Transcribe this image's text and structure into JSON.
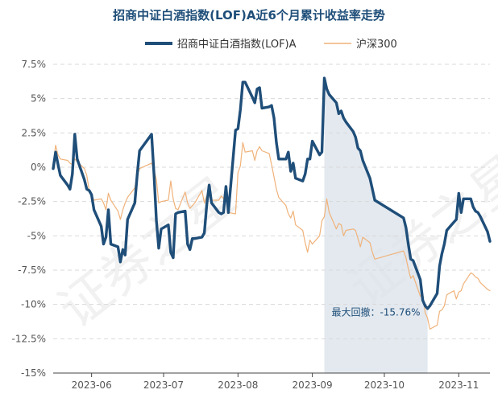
{
  "chart_data": {
    "type": "line",
    "title": "招商中证白酒指数(LOF)A近6个月累计收益率走势",
    "legend_position": "top",
    "grid": "horizontal-dashed",
    "ylim": [
      -15,
      7.5
    ],
    "yticks": [
      7.5,
      5,
      2.5,
      0,
      -2.5,
      -5,
      -7.5,
      -10,
      -12.5,
      -15
    ],
    "ytick_labels": [
      "7.5%",
      "5%",
      "2.5%",
      "0%",
      "-2.5%",
      "-5%",
      "-7.5%",
      "-10%",
      "-12.5%",
      "-15%"
    ],
    "xticks": [
      "2023-06",
      "2023-07",
      "2023-08",
      "2023-09",
      "2023-10",
      "2023-11"
    ],
    "x_start": "2023-05-16",
    "x_end": "2023-11-14",
    "series": [
      {
        "name": "招商中证白酒指数(LOF)A",
        "color": "#1f4e79",
        "points": [
          [
            "2023-05-16",
            -0.1
          ],
          [
            "2023-05-17",
            1.1
          ],
          [
            "2023-05-18",
            0.2
          ],
          [
            "2023-05-19",
            -0.6
          ],
          [
            "2023-05-22",
            -1.3
          ],
          [
            "2023-05-23",
            -1.6
          ],
          [
            "2023-05-24",
            -0.5
          ],
          [
            "2023-05-25",
            2.4
          ],
          [
            "2023-05-26",
            0.6
          ],
          [
            "2023-05-29",
            -0.9
          ],
          [
            "2023-05-30",
            -1.6
          ],
          [
            "2023-05-31",
            -1.7
          ],
          [
            "2023-06-01",
            -2.0
          ],
          [
            "2023-06-02",
            -3.1
          ],
          [
            "2023-06-05",
            -4.3
          ],
          [
            "2023-06-06",
            -5.6
          ],
          [
            "2023-06-07",
            -5.1
          ],
          [
            "2023-06-08",
            -3.1
          ],
          [
            "2023-06-09",
            -5.6
          ],
          [
            "2023-06-12",
            -5.8
          ],
          [
            "2023-06-13",
            -6.9
          ],
          [
            "2023-06-14",
            -6.0
          ],
          [
            "2023-06-15",
            -6.4
          ],
          [
            "2023-06-16",
            -3.8
          ],
          [
            "2023-06-19",
            -2.6
          ],
          [
            "2023-06-20",
            -0.6
          ],
          [
            "2023-06-21",
            1.2
          ],
          [
            "2023-06-26",
            2.4
          ],
          [
            "2023-06-27",
            -0.5
          ],
          [
            "2023-06-28",
            -3.9
          ],
          [
            "2023-06-29",
            -5.9
          ],
          [
            "2023-06-30",
            -4.5
          ],
          [
            "2023-07-03",
            -4.2
          ],
          [
            "2023-07-04",
            -6.2
          ],
          [
            "2023-07-05",
            -6.6
          ],
          [
            "2023-07-06",
            -3.4
          ],
          [
            "2023-07-07",
            -3.3
          ],
          [
            "2023-07-10",
            -3.2
          ],
          [
            "2023-07-11",
            -5.6
          ],
          [
            "2023-07-12",
            -6.0
          ],
          [
            "2023-07-13",
            -5.2
          ],
          [
            "2023-07-14",
            -5.2
          ],
          [
            "2023-07-17",
            -5.1
          ],
          [
            "2023-07-18",
            -4.8
          ],
          [
            "2023-07-19",
            -2.7
          ],
          [
            "2023-07-20",
            -1.3
          ],
          [
            "2023-07-21",
            -2.6
          ],
          [
            "2023-07-24",
            -3.3
          ],
          [
            "2023-07-25",
            -3.4
          ],
          [
            "2023-07-26",
            -3.3
          ],
          [
            "2023-07-27",
            -1.4
          ],
          [
            "2023-07-28",
            -3.3
          ],
          [
            "2023-07-31",
            2.7
          ],
          [
            "2023-08-01",
            2.8
          ],
          [
            "2023-08-02",
            4.2
          ],
          [
            "2023-08-03",
            6.2
          ],
          [
            "2023-08-04",
            6.2
          ],
          [
            "2023-08-07",
            5.1
          ],
          [
            "2023-08-08",
            4.7
          ],
          [
            "2023-08-09",
            5.7
          ],
          [
            "2023-08-10",
            5.8
          ],
          [
            "2023-08-11",
            4.3
          ],
          [
            "2023-08-14",
            4.4
          ],
          [
            "2023-08-15",
            4.5
          ],
          [
            "2023-08-16",
            3.6
          ],
          [
            "2023-08-17",
            1.8
          ],
          [
            "2023-08-18",
            0.6
          ],
          [
            "2023-08-21",
            0.6
          ],
          [
            "2023-08-22",
            1.1
          ],
          [
            "2023-08-23",
            -0.3
          ],
          [
            "2023-08-24",
            0.3
          ],
          [
            "2023-08-25",
            -0.8
          ],
          [
            "2023-08-28",
            -1.0
          ],
          [
            "2023-08-29",
            -0.5
          ],
          [
            "2023-08-30",
            0.6
          ],
          [
            "2023-08-31",
            0.6
          ],
          [
            "2023-09-01",
            1.9
          ],
          [
            "2023-09-04",
            0.9
          ],
          [
            "2023-09-05",
            1.1
          ],
          [
            "2023-09-06",
            6.5
          ],
          [
            "2023-09-07",
            5.7
          ],
          [
            "2023-09-08",
            5.3
          ],
          [
            "2023-09-11",
            4.7
          ],
          [
            "2023-09-12",
            3.9
          ],
          [
            "2023-09-13",
            4.1
          ],
          [
            "2023-09-14",
            3.6
          ],
          [
            "2023-09-15",
            3.3
          ],
          [
            "2023-09-18",
            2.6
          ],
          [
            "2023-09-19",
            2.2
          ],
          [
            "2023-09-20",
            1.4
          ],
          [
            "2023-09-21",
            1.2
          ],
          [
            "2023-09-22",
            0.5
          ],
          [
            "2023-09-25",
            -0.8
          ],
          [
            "2023-09-26",
            -1.6
          ],
          [
            "2023-09-27",
            -2.4
          ],
          [
            "2023-10-09",
            -3.7
          ],
          [
            "2023-10-10",
            -4.4
          ],
          [
            "2023-10-11",
            -5.6
          ],
          [
            "2023-10-12",
            -6.7
          ],
          [
            "2023-10-13",
            -6.8
          ],
          [
            "2023-10-16",
            -8.2
          ],
          [
            "2023-10-17",
            -9.7
          ],
          [
            "2023-10-18",
            -10.1
          ],
          [
            "2023-10-19",
            -10.3
          ],
          [
            "2023-10-20",
            -10.1
          ],
          [
            "2023-10-23",
            -9.2
          ],
          [
            "2023-10-24",
            -7.2
          ],
          [
            "2023-10-25",
            -6.3
          ],
          [
            "2023-10-26",
            -5.6
          ],
          [
            "2023-10-27",
            -4.6
          ],
          [
            "2023-10-30",
            -4.0
          ],
          [
            "2023-10-31",
            -3.8
          ],
          [
            "2023-11-01",
            -1.9
          ],
          [
            "2023-11-02",
            -3.3
          ],
          [
            "2023-11-03",
            -2.3
          ],
          [
            "2023-11-06",
            -2.3
          ],
          [
            "2023-11-07",
            -2.9
          ],
          [
            "2023-11-08",
            -3.2
          ],
          [
            "2023-11-09",
            -3.3
          ],
          [
            "2023-11-10",
            -3.6
          ],
          [
            "2023-11-13",
            -4.7
          ],
          [
            "2023-11-14",
            -5.4
          ]
        ]
      },
      {
        "name": "沪深300",
        "color": "#f0b27a",
        "points": [
          [
            "2023-05-16",
            0.2
          ],
          [
            "2023-05-17",
            1.6
          ],
          [
            "2023-05-18",
            0.9
          ],
          [
            "2023-05-19",
            0.6
          ],
          [
            "2023-05-22",
            0.5
          ],
          [
            "2023-05-23",
            0.3
          ],
          [
            "2023-05-24",
            0.2
          ],
          [
            "2023-05-25",
            0.6
          ],
          [
            "2023-05-26",
            0.4
          ],
          [
            "2023-05-29",
            -0.1
          ],
          [
            "2023-05-30",
            -0.6
          ],
          [
            "2023-05-31",
            -1.7
          ],
          [
            "2023-06-01",
            -2.0
          ],
          [
            "2023-06-02",
            -2.4
          ],
          [
            "2023-06-05",
            -2.3
          ],
          [
            "2023-06-06",
            -2.6
          ],
          [
            "2023-06-07",
            -3.1
          ],
          [
            "2023-06-08",
            -1.9
          ],
          [
            "2023-06-09",
            -2.4
          ],
          [
            "2023-06-12",
            -3.2
          ],
          [
            "2023-06-13",
            -3.8
          ],
          [
            "2023-06-14",
            -3.1
          ],
          [
            "2023-06-15",
            -2.6
          ],
          [
            "2023-06-16",
            -2.2
          ],
          [
            "2023-06-19",
            -1.5
          ],
          [
            "2023-06-20",
            -0.6
          ],
          [
            "2023-06-21",
            -0.1
          ],
          [
            "2023-06-26",
            0.3
          ],
          [
            "2023-06-27",
            -0.2
          ],
          [
            "2023-06-28",
            -0.9
          ],
          [
            "2023-06-29",
            -2.6
          ],
          [
            "2023-06-30",
            -2.5
          ],
          [
            "2023-07-03",
            -2.4
          ],
          [
            "2023-07-04",
            -1.0
          ],
          [
            "2023-07-05",
            -2.3
          ],
          [
            "2023-07-06",
            -3.0
          ],
          [
            "2023-07-07",
            -3.1
          ],
          [
            "2023-07-10",
            -1.8
          ],
          [
            "2023-07-11",
            -2.6
          ],
          [
            "2023-07-12",
            -3.0
          ],
          [
            "2023-07-13",
            -2.8
          ],
          [
            "2023-07-14",
            -2.6
          ],
          [
            "2023-07-17",
            -1.7
          ],
          [
            "2023-07-18",
            -2.6
          ],
          [
            "2023-07-19",
            -2.1
          ],
          [
            "2023-07-20",
            -1.6
          ],
          [
            "2023-07-21",
            -2.4
          ],
          [
            "2023-07-24",
            -2.4
          ],
          [
            "2023-07-25",
            -2.1
          ],
          [
            "2023-07-26",
            -2.3
          ],
          [
            "2023-07-27",
            -1.5
          ],
          [
            "2023-07-28",
            -3.3
          ],
          [
            "2023-07-31",
            -3.4
          ],
          [
            "2023-08-01",
            -0.4
          ],
          [
            "2023-08-02",
            0.1
          ],
          [
            "2023-08-03",
            1.8
          ],
          [
            "2023-08-04",
            1.1
          ],
          [
            "2023-08-07",
            1.2
          ],
          [
            "2023-08-08",
            0.5
          ],
          [
            "2023-08-09",
            1.2
          ],
          [
            "2023-08-10",
            1.5
          ],
          [
            "2023-08-11",
            1.2
          ],
          [
            "2023-08-14",
            1.0
          ],
          [
            "2023-08-15",
            0.2
          ],
          [
            "2023-08-16",
            -0.7
          ],
          [
            "2023-08-17",
            -1.6
          ],
          [
            "2023-08-18",
            -2.2
          ],
          [
            "2023-08-21",
            -2.8
          ],
          [
            "2023-08-22",
            -3.4
          ],
          [
            "2023-08-23",
            -3.7
          ],
          [
            "2023-08-24",
            -3.2
          ],
          [
            "2023-08-25",
            -4.2
          ],
          [
            "2023-08-28",
            -4.6
          ],
          [
            "2023-08-29",
            -5.5
          ],
          [
            "2023-08-30",
            -6.2
          ],
          [
            "2023-08-31",
            -5.3
          ],
          [
            "2023-09-01",
            -5.6
          ],
          [
            "2023-09-04",
            -5.0
          ],
          [
            "2023-09-05",
            -3.9
          ],
          [
            "2023-09-06",
            -3.6
          ],
          [
            "2023-09-07",
            -2.3
          ],
          [
            "2023-09-08",
            -3.3
          ],
          [
            "2023-09-11",
            -4.5
          ],
          [
            "2023-09-12",
            -4.1
          ],
          [
            "2023-09-13",
            -4.2
          ],
          [
            "2023-09-14",
            -5.0
          ],
          [
            "2023-09-15",
            -4.6
          ],
          [
            "2023-09-18",
            -4.5
          ],
          [
            "2023-09-19",
            -4.6
          ],
          [
            "2023-09-20",
            -5.2
          ],
          [
            "2023-09-21",
            -5.8
          ],
          [
            "2023-09-22",
            -5.1
          ],
          [
            "2023-09-25",
            -5.5
          ],
          [
            "2023-09-26",
            -6.2
          ],
          [
            "2023-09-27",
            -6.7
          ],
          [
            "2023-10-09",
            -6.1
          ],
          [
            "2023-10-10",
            -6.6
          ],
          [
            "2023-10-11",
            -7.4
          ],
          [
            "2023-10-12",
            -8.1
          ],
          [
            "2023-10-13",
            -7.9
          ],
          [
            "2023-10-16",
            -9.4
          ],
          [
            "2023-10-17",
            -9.2
          ],
          [
            "2023-10-18",
            -10.6
          ],
          [
            "2023-10-19",
            -11.0
          ],
          [
            "2023-10-20",
            -11.8
          ],
          [
            "2023-10-23",
            -11.5
          ],
          [
            "2023-10-24",
            -10.5
          ],
          [
            "2023-10-25",
            -10.4
          ],
          [
            "2023-10-26",
            -10.1
          ],
          [
            "2023-10-27",
            -9.3
          ],
          [
            "2023-10-30",
            -9.0
          ],
          [
            "2023-10-31",
            -9.6
          ],
          [
            "2023-11-01",
            -9.1
          ],
          [
            "2023-11-02",
            -9.0
          ],
          [
            "2023-11-03",
            -8.5
          ],
          [
            "2023-11-06",
            -7.7
          ],
          [
            "2023-11-07",
            -7.8
          ],
          [
            "2023-11-08",
            -8.0
          ],
          [
            "2023-11-09",
            -8.1
          ],
          [
            "2023-11-10",
            -8.4
          ],
          [
            "2023-11-13",
            -8.9
          ],
          [
            "2023-11-14",
            -9.0
          ]
        ]
      }
    ],
    "max_drawdown": {
      "label": "最大回撤：-15.76%",
      "start": "2023-09-06",
      "end": "2023-10-19",
      "color": "#d9e2ea"
    }
  },
  "watermark": "证券之星"
}
